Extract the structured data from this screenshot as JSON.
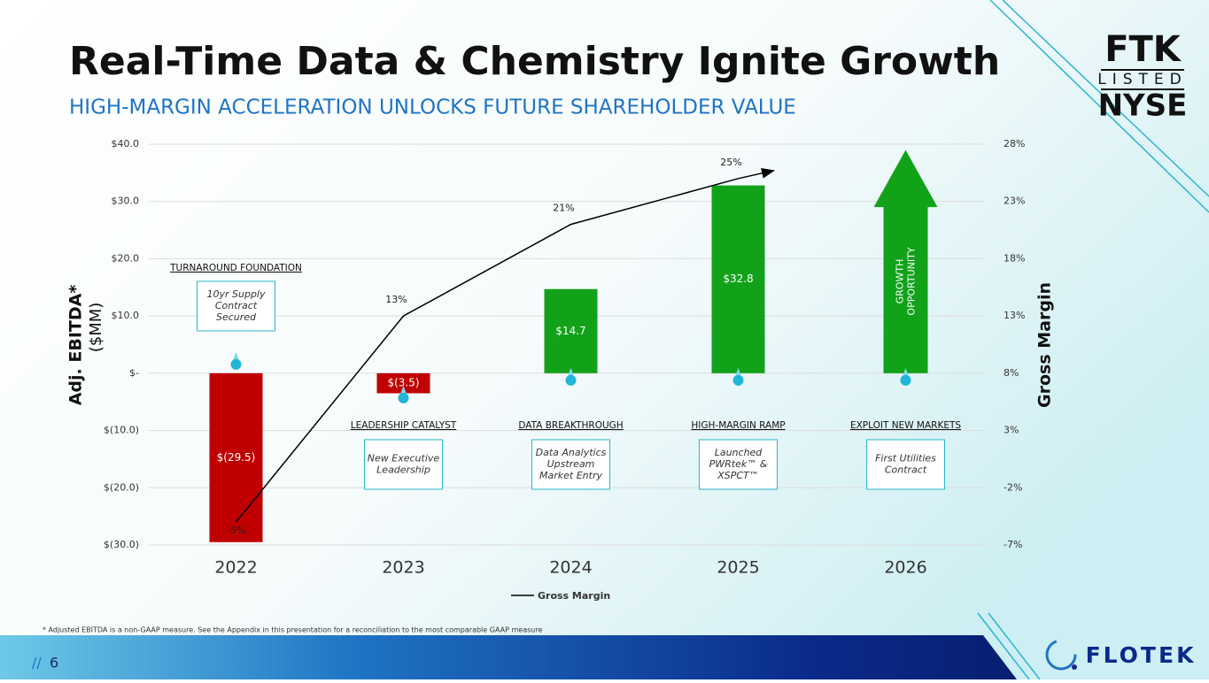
{
  "header": {
    "title": "Real-Time Data & Chemistry Ignite Growth",
    "subtitle": "HIGH-MARGIN ACCELERATION UNLOCKS FUTURE SHAREHOLDER VALUE"
  },
  "logo": {
    "line1": "FTK",
    "line2": "LISTED",
    "line3": "NYSE"
  },
  "chart_data": {
    "type": "bar",
    "categories": [
      "2022",
      "2023",
      "2024",
      "2025",
      "2026"
    ],
    "values": [
      -29.5,
      -3.5,
      14.7,
      32.8,
      null
    ],
    "value_labels": [
      "$(29.5)",
      "$(3.5)",
      "$14.7",
      "$32.8",
      null
    ],
    "colors": [
      "#c00000",
      "#c00000",
      "#12a21a",
      "#12a21a",
      "#12a21a"
    ],
    "series": [
      {
        "name": "Gross Margin",
        "type": "line",
        "axis": "y2",
        "color": "#000000",
        "values": [
          -5,
          13,
          21,
          25,
          null
        ],
        "value_labels": [
          "-5%",
          "13%",
          "21%",
          "25%",
          null
        ]
      }
    ],
    "ylabel": "Adj. EBITDA*",
    "ylabel_unit": "($MM)",
    "y2label": "Gross Margin",
    "ylim": [
      -30,
      40
    ],
    "yticks": [
      {
        "value": 40,
        "label": "$40.0"
      },
      {
        "value": 30,
        "label": "$30.0"
      },
      {
        "value": 20,
        "label": "$20.0"
      },
      {
        "value": 10,
        "label": "$10.0"
      },
      {
        "value": 0,
        "label": "$-"
      },
      {
        "value": -10,
        "label": "$(10.0)"
      },
      {
        "value": -20,
        "label": "$(20.0)"
      },
      {
        "value": -30,
        "label": "$(30.0)"
      }
    ],
    "y2lim": [
      -7,
      28
    ],
    "y2ticks": [
      {
        "value": 28,
        "label": "28%"
      },
      {
        "value": 23,
        "label": "23%"
      },
      {
        "value": 18,
        "label": "18%"
      },
      {
        "value": 13,
        "label": "13%"
      },
      {
        "value": 8,
        "label": "8%"
      },
      {
        "value": 3,
        "label": "3%"
      },
      {
        "value": -2,
        "label": "-2%"
      },
      {
        "value": -7,
        "label": "-7%"
      }
    ],
    "grid": true,
    "legend": "bottom",
    "milestones": [
      {
        "heading": "TURNAROUND FOUNDATION",
        "text": [
          "10yr Supply",
          "Contract",
          "Secured"
        ]
      },
      {
        "heading": "LEADERSHIP CATALYST",
        "text": [
          "New Executive",
          "Leadership"
        ]
      },
      {
        "heading": "DATA BREAKTHROUGH",
        "text": [
          "Data Analytics",
          "Upstream",
          "Market Entry"
        ]
      },
      {
        "heading": "HIGH-MARGIN RAMP",
        "text": [
          "Launched",
          "PWRtek™ &",
          "XSPCT™"
        ]
      },
      {
        "heading": "EXPLOIT NEW MARKETS",
        "text": [
          "First Utilities",
          "Contract"
        ]
      }
    ],
    "arrow_label": [
      "GROWTH",
      "OPPORTUNITY"
    ]
  },
  "footnote": "* Adjusted EBITDA is a non-GAAP measure.  See the Appendix in this presentation for a reconciliation to the most comparable GAAP measure",
  "page_number": "6",
  "company": "FLOTEK"
}
